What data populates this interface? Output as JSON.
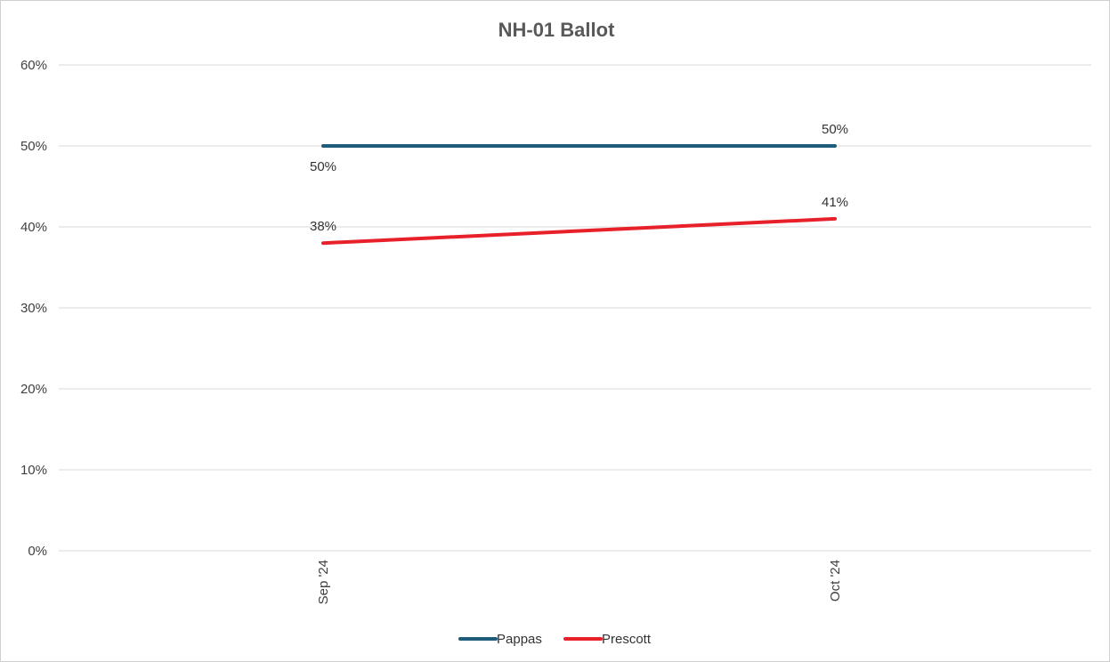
{
  "chart_data": {
    "type": "line",
    "title": "NH-01 Ballot",
    "xlabel": "",
    "ylabel": "",
    "categories": [
      "Sep '24",
      "Oct '24"
    ],
    "ylim": [
      0,
      60
    ],
    "yticks": [
      0,
      10,
      20,
      30,
      40,
      50,
      60
    ],
    "ytick_labels": [
      "0%",
      "10%",
      "20%",
      "30%",
      "40%",
      "50%",
      "60%"
    ],
    "grid": true,
    "legend": "bottom",
    "series": [
      {
        "name": "Pappas",
        "color": "#1F5C7A",
        "values": [
          50,
          50
        ],
        "labels": [
          "50%",
          "50%"
        ],
        "label_pos": [
          "below",
          "above"
        ]
      },
      {
        "name": "Prescott",
        "color": "#E8202A",
        "values": [
          38,
          41
        ],
        "labels": [
          "38%",
          "41%"
        ],
        "label_pos": [
          "above",
          "above"
        ]
      }
    ]
  }
}
